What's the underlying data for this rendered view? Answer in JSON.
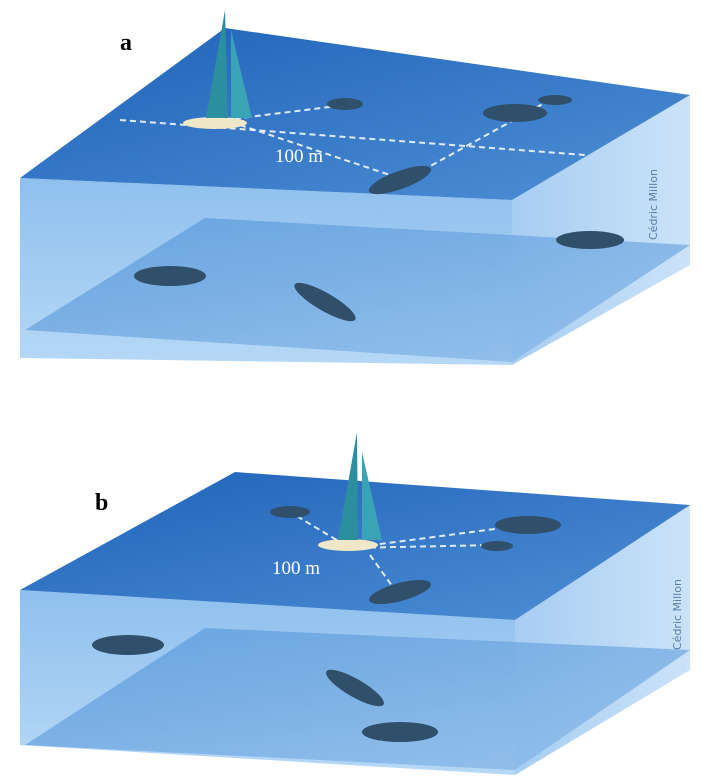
{
  "panels": [
    {
      "label": "a",
      "distance": "100 m",
      "credit": "Cédric Millon"
    },
    {
      "label": "b",
      "distance": "100 m",
      "credit": "Cédric Millon"
    }
  ]
}
